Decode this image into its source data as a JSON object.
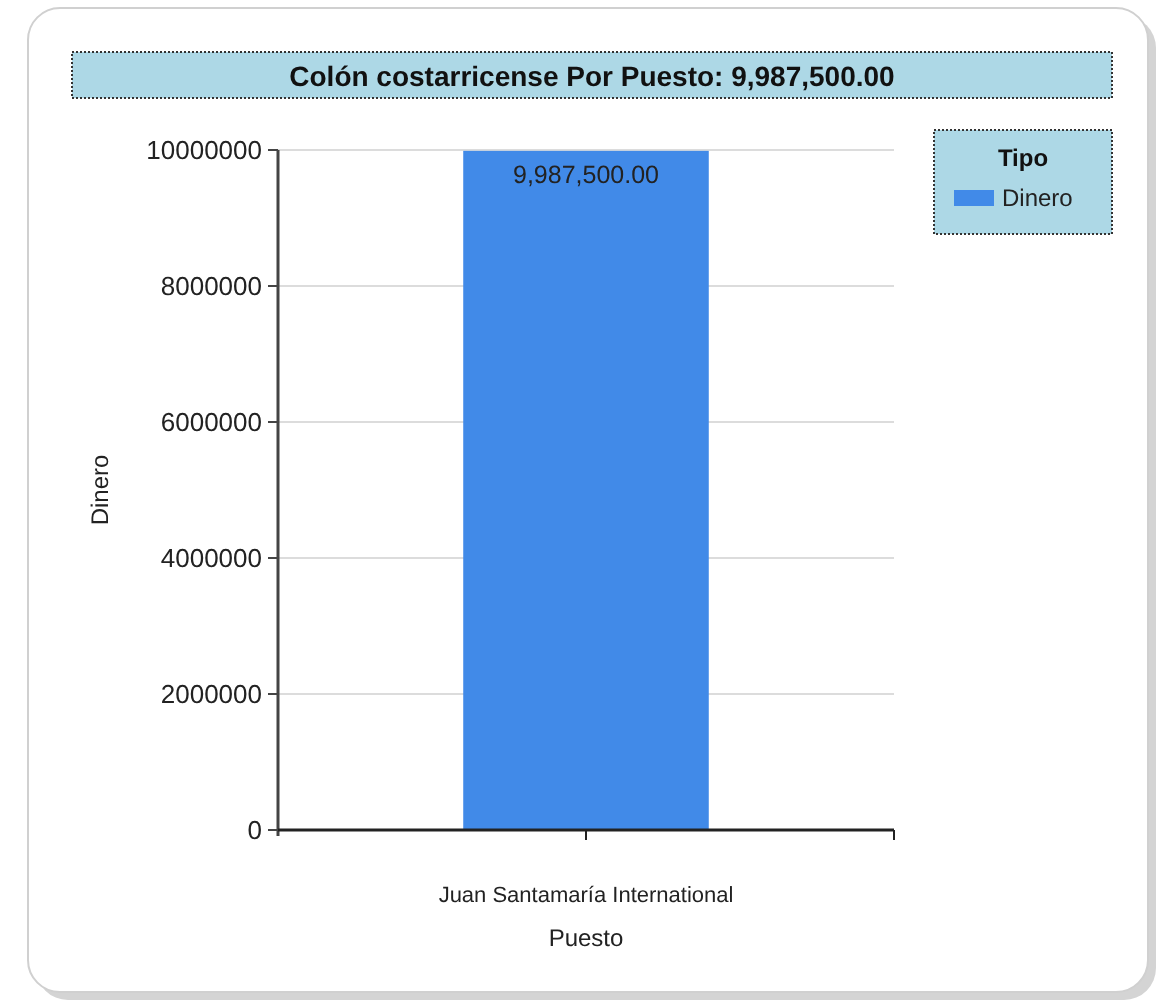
{
  "chart_data": {
    "type": "bar",
    "title": "Colón costarricense Por Puesto: 9,987,500.00",
    "xlabel": "Puesto",
    "ylabel": "Dinero",
    "legend_title": "Tipo",
    "categories": [
      "Juan Santamaría International"
    ],
    "series": [
      {
        "name": "Dinero",
        "color": "#418ae8",
        "values": [
          9987500
        ],
        "value_labels": [
          "9,987,500.00"
        ]
      }
    ],
    "ylim": [
      0,
      10000000
    ],
    "yticks": [
      0,
      2000000,
      4000000,
      6000000,
      8000000,
      10000000
    ],
    "grid": "y",
    "legend": "top right"
  }
}
